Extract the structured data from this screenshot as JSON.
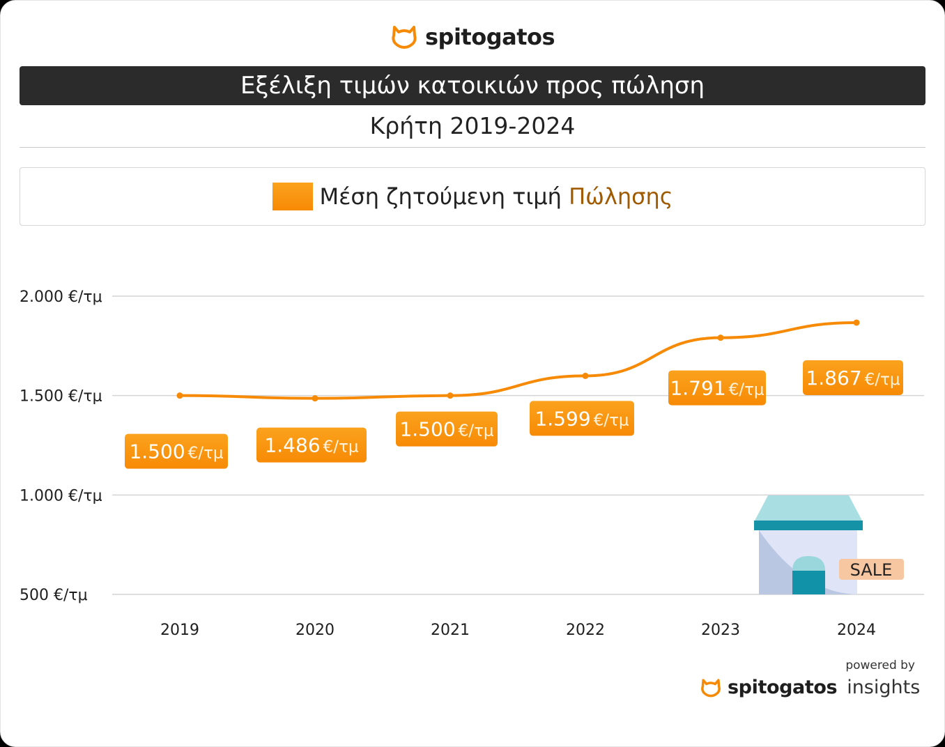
{
  "brand": {
    "name": "spitogatos",
    "icon": "cat-icon",
    "color": "#f78a05"
  },
  "title": "Εξέλιξη τιμών κατοικιών προς πώληση",
  "subtitle": "Κρήτη 2019-2024",
  "legend": {
    "prefix": "Μέση ζητούμενη τιμή",
    "accent": "Πώλησης"
  },
  "chart_data": {
    "type": "line",
    "categories": [
      "2019",
      "2020",
      "2021",
      "2022",
      "2023",
      "2024"
    ],
    "series": [
      {
        "values": [
          1500,
          1486,
          1500,
          1599,
          1791,
          1867
        ],
        "color": "#f78a05"
      }
    ],
    "data_labels": [
      {
        "value": "1.500",
        "unit": "€/τμ"
      },
      {
        "value": "1.486",
        "unit": "€/τμ"
      },
      {
        "value": "1.500",
        "unit": "€/τμ"
      },
      {
        "value": "1.599",
        "unit": "€/τμ"
      },
      {
        "value": "1.791",
        "unit": "€/τμ"
      },
      {
        "value": "1.867",
        "unit": "€/τμ"
      }
    ],
    "y_ticks": [
      {
        "value": 2000,
        "label": "2.000 €/τμ"
      },
      {
        "value": 1500,
        "label": "1.500 €/τμ"
      },
      {
        "value": 1000,
        "label": "1.000 €/τμ"
      },
      {
        "value": 500,
        "label": "500 €/τμ"
      }
    ],
    "ylim": [
      500,
      2000
    ],
    "grid": true
  },
  "illustration": {
    "badge": "SALE",
    "icon": "shop-icon"
  },
  "footer": {
    "powered_by": "powered by",
    "brand": "spitogatos",
    "product": "insights"
  }
}
